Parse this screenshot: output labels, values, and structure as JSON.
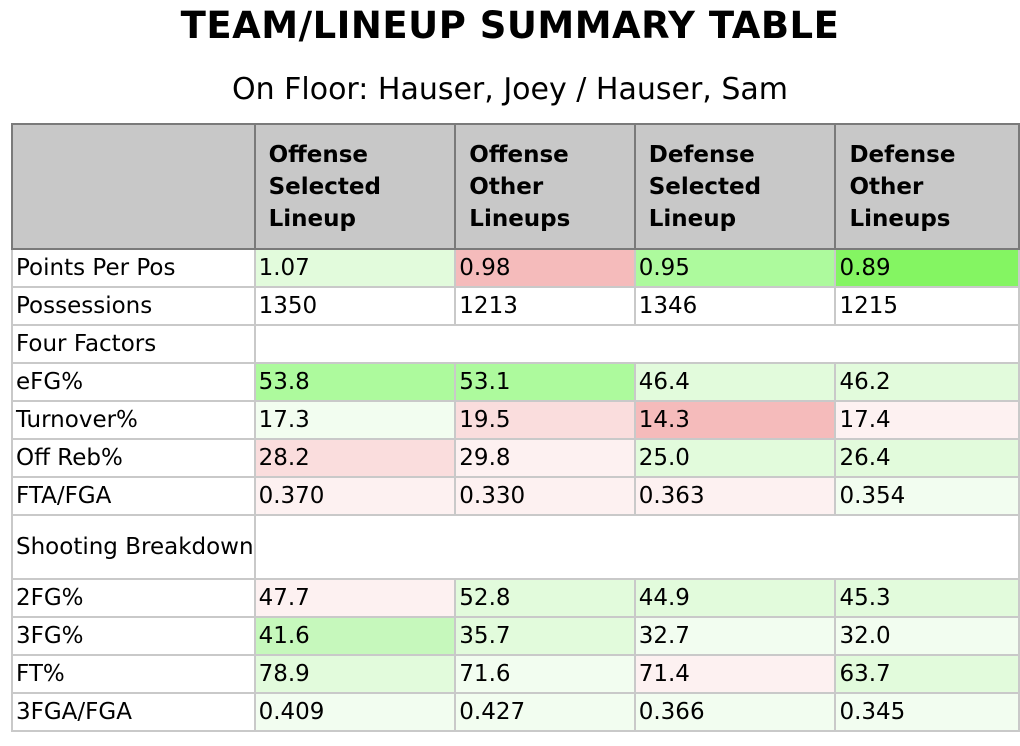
{
  "title": "TEAM/LINEUP SUMMARY TABLE",
  "subtitle": "On Floor: Hauser, Joey / Hauser, Sam",
  "columns": [
    "",
    "Offense Selected Lineup",
    "Offense Other Lineups",
    "Defense Selected Lineup",
    "Defense Other Lineups"
  ],
  "colors": {
    "header_bg": "#c8c8c8",
    "green_strong": "#84f562",
    "green_mid": "#adfa9d",
    "green_light": "#c6f8bc",
    "green_pale": "#e2fbdc",
    "green_faint": "#f2fdf0",
    "red_strong": "#f5bbbb",
    "red_light": "#fadddd",
    "red_faint": "#fdf1f1",
    "white": "#ffffff"
  },
  "rows": [
    {
      "label": "Points Per Pos",
      "values": [
        "1.07",
        "0.98",
        "0.95",
        "0.89"
      ],
      "shade": [
        "green_pale",
        "red_strong",
        "green_mid",
        "green_strong"
      ]
    },
    {
      "label": "Possessions",
      "values": [
        "1350",
        "1213",
        "1346",
        "1215"
      ],
      "shade": [
        "white",
        "white",
        "white",
        "white"
      ]
    },
    {
      "label": "Four Factors",
      "section": true
    },
    {
      "label": "eFG%",
      "values": [
        "53.8",
        "53.1",
        "46.4",
        "46.2"
      ],
      "shade": [
        "green_mid",
        "green_mid",
        "green_pale",
        "green_pale"
      ]
    },
    {
      "label": "Turnover%",
      "values": [
        "17.3",
        "19.5",
        "14.3",
        "17.4"
      ],
      "shade": [
        "green_faint",
        "red_light",
        "red_strong",
        "red_faint"
      ]
    },
    {
      "label": "Off Reb%",
      "values": [
        "28.2",
        "29.8",
        "25.0",
        "26.4"
      ],
      "shade": [
        "red_light",
        "red_faint",
        "green_pale",
        "green_pale"
      ]
    },
    {
      "label": "FTA/FGA",
      "values": [
        "0.370",
        "0.330",
        "0.363",
        "0.354"
      ],
      "shade": [
        "red_faint",
        "red_faint",
        "red_faint",
        "green_faint"
      ]
    },
    {
      "label": "Shooting Breakdown",
      "section": true,
      "tall": true
    },
    {
      "label": "2FG%",
      "values": [
        "47.7",
        "52.8",
        "44.9",
        "45.3"
      ],
      "shade": [
        "red_faint",
        "green_pale",
        "green_pale",
        "green_pale"
      ]
    },
    {
      "label": "3FG%",
      "values": [
        "41.6",
        "35.7",
        "32.7",
        "32.0"
      ],
      "shade": [
        "green_light",
        "green_pale",
        "green_faint",
        "green_faint"
      ]
    },
    {
      "label": "FT%",
      "values": [
        "78.9",
        "71.6",
        "71.4",
        "63.7"
      ],
      "shade": [
        "green_pale",
        "green_faint",
        "red_faint",
        "green_pale"
      ]
    },
    {
      "label": "3FGA/FGA",
      "values": [
        "0.409",
        "0.427",
        "0.366",
        "0.345"
      ],
      "shade": [
        "green_faint",
        "green_faint",
        "green_faint",
        "green_faint"
      ]
    }
  ]
}
